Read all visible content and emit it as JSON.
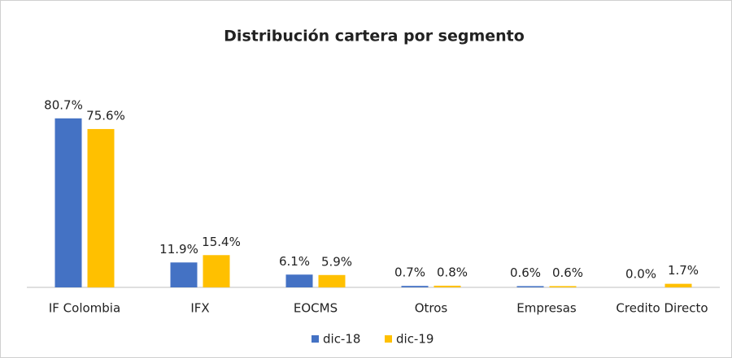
{
  "chart_data": {
    "type": "bar",
    "title": "Distribución cartera por segmento",
    "categories": [
      "IF Colombia",
      "IFX",
      "EOCMS",
      "Otros",
      "Empresas",
      "Credito Directo"
    ],
    "series": [
      {
        "name": "dic-18",
        "color": "#4472c4",
        "values": [
          80.7,
          11.9,
          6.1,
          0.7,
          0.6,
          0.0
        ],
        "value_labels": [
          "80.7%",
          "11.9%",
          "6.1%",
          "0.7%",
          "0.6%",
          "0.0%"
        ]
      },
      {
        "name": "dic-19",
        "color": "#ffc000",
        "values": [
          75.6,
          15.4,
          5.9,
          0.8,
          0.6,
          1.7
        ],
        "value_labels": [
          "75.6%",
          "15.4%",
          "5.9%",
          "0.8%",
          "0.6%",
          "1.7%"
        ]
      }
    ],
    "ylim": [
      0,
      100
    ],
    "legend": "bottom"
  }
}
